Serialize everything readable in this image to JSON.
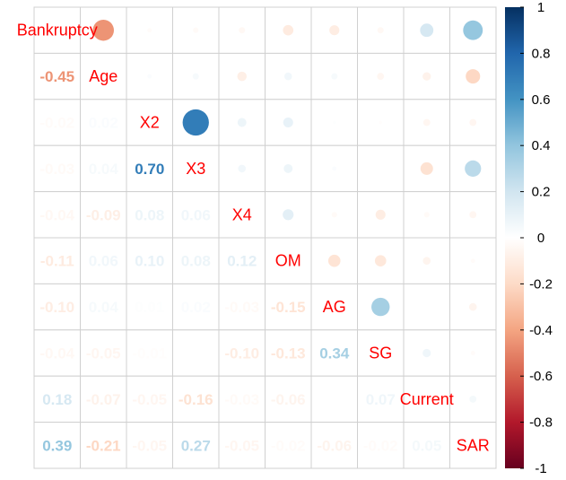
{
  "chart_data": {
    "type": "heatmap",
    "variables": [
      "Bankruptcy",
      "Age",
      "X2",
      "X3",
      "X4",
      "OM",
      "AG",
      "SG",
      "Current",
      "SAR"
    ],
    "lower_method": "number",
    "upper_method": "circle",
    "diagonal": "variable names",
    "matrix": [
      [
        1,
        -0.45,
        -0.02,
        -0.03,
        -0.04,
        -0.11,
        -0.1,
        -0.04,
        0.18,
        0.39
      ],
      [
        -0.45,
        1,
        0.02,
        0.04,
        -0.09,
        0.06,
        0.04,
        -0.05,
        -0.07,
        -0.21
      ],
      [
        -0.02,
        0.02,
        1,
        0.7,
        0.08,
        0.1,
        0.01,
        -0.01,
        -0.05,
        -0.05
      ],
      [
        -0.03,
        0.04,
        0.7,
        1,
        0.06,
        0.08,
        0.02,
        0.0,
        -0.16,
        0.27
      ],
      [
        -0.04,
        -0.09,
        0.08,
        0.06,
        1,
        0.12,
        -0.03,
        -0.1,
        -0.03,
        -0.05
      ],
      [
        -0.11,
        0.06,
        0.1,
        0.08,
        0.12,
        1,
        -0.15,
        -0.13,
        -0.06,
        -0.02
      ],
      [
        -0.1,
        0.04,
        0.01,
        0.02,
        -0.03,
        -0.15,
        1,
        0.34,
        0.0,
        -0.06
      ],
      [
        -0.04,
        -0.05,
        -0.01,
        0.0,
        -0.1,
        -0.13,
        0.34,
        1,
        0.07,
        -0.02
      ],
      [
        0.18,
        -0.07,
        -0.05,
        -0.16,
        -0.03,
        -0.06,
        0.0,
        0.07,
        1,
        0.05
      ],
      [
        0.39,
        -0.21,
        -0.05,
        0.27,
        -0.05,
        -0.02,
        -0.06,
        -0.02,
        0.05,
        1
      ]
    ],
    "colorbar": {
      "range": [
        -1,
        1
      ],
      "ticks": [
        "1",
        "0.8",
        "0.6",
        "0.4",
        "0.2",
        "0",
        "-0.2",
        "-0.4",
        "-0.6",
        "-0.8",
        "-1"
      ],
      "palette": [
        "#67001f",
        "#b2182b",
        "#d6604d",
        "#f4a582",
        "#fddbc7",
        "#ffffff",
        "#d1e5f0",
        "#92c5de",
        "#4393c3",
        "#2166ac",
        "#053061"
      ]
    },
    "colors": {
      "label": "#ff0000",
      "grid": "#d0d0d0"
    }
  }
}
